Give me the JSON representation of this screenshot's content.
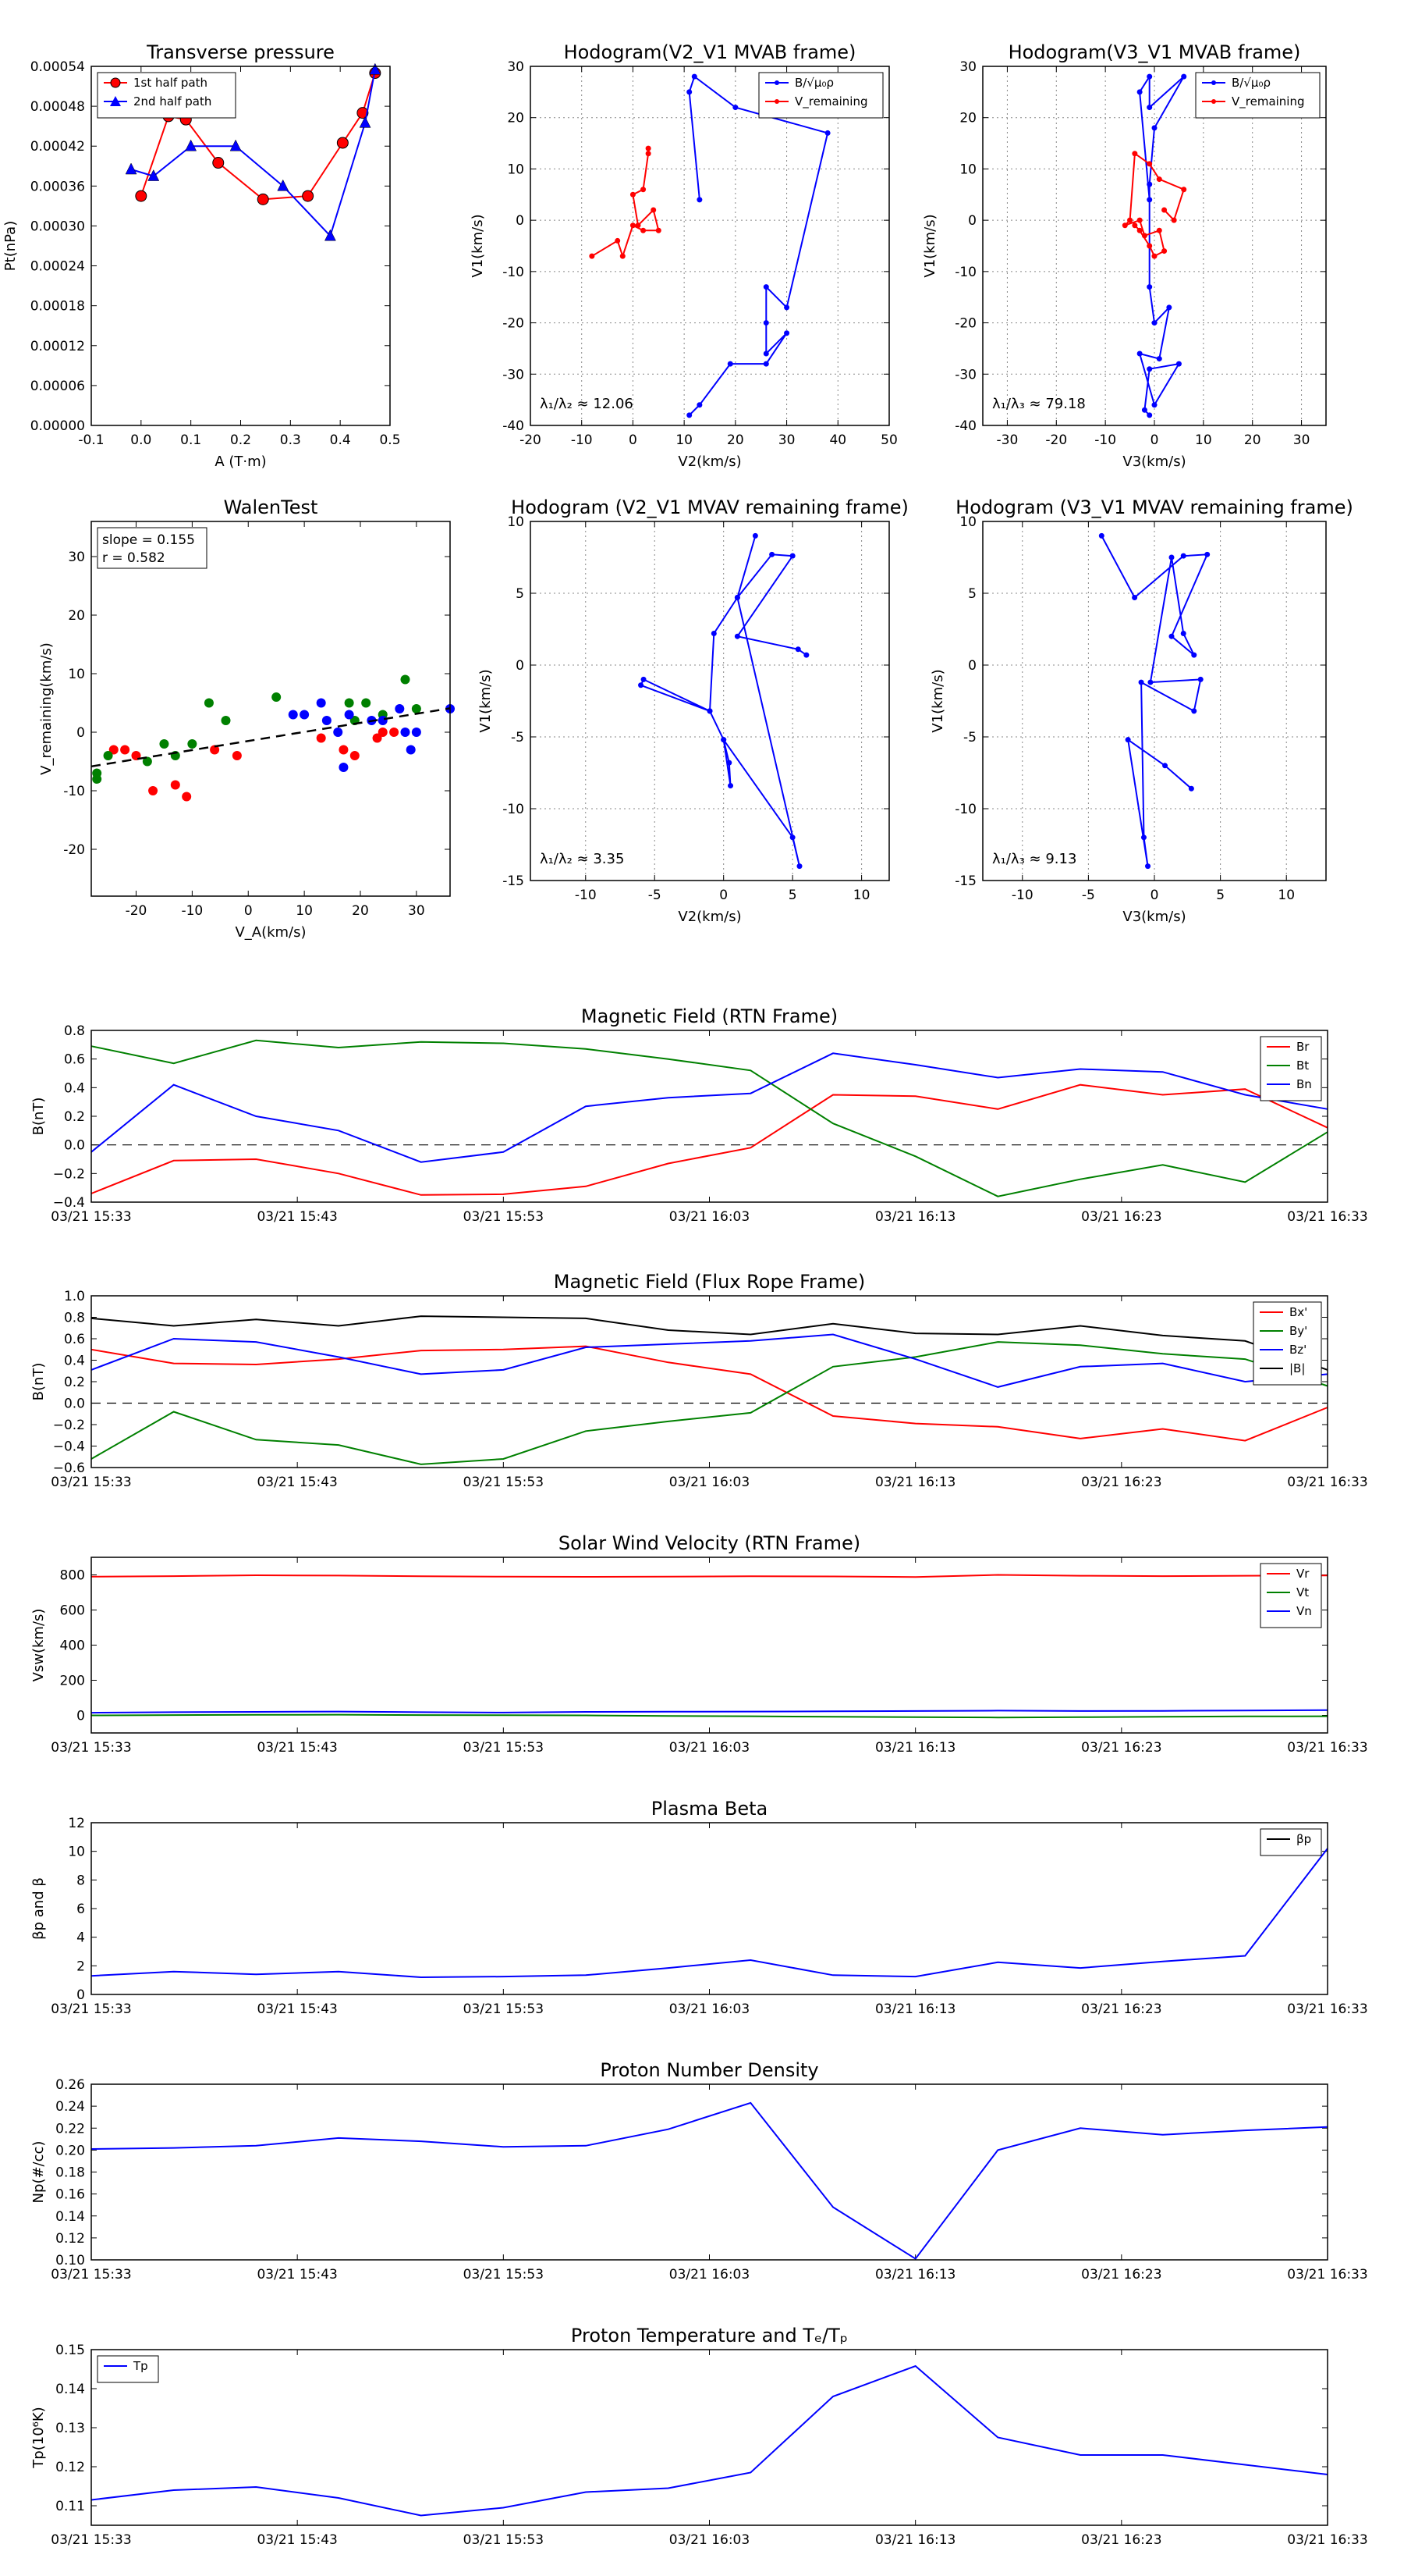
{
  "colors": {
    "red": "#ff0000",
    "green": "#008000",
    "blue": "#0000ff",
    "black": "#000000",
    "darkred": "#cc0000",
    "grid": "#999999"
  },
  "timeticks": [
    "03/21 15:33",
    "03/21 15:43",
    "03/21 15:53",
    "03/21 16:03",
    "03/21 16:13",
    "03/21 16:23",
    "03/21 16:33"
  ],
  "chart_data": [
    {
      "id": "tp",
      "type": "line",
      "title": "Transverse pressure",
      "xlabel": "A (T·m)",
      "ylabel": "Pt(nPa)",
      "xlim": [
        -0.1,
        0.5
      ],
      "ylim": [
        0,
        0.00054
      ],
      "xticks": [
        -0.1,
        0.0,
        0.1,
        0.2,
        0.3,
        0.4,
        0.5
      ],
      "yticks": [
        0.0,
        6e-05,
        0.00012,
        0.00018,
        0.00024,
        0.0003,
        0.00036,
        0.00042,
        0.00048,
        0.00054
      ],
      "ytick_labels": [
        "0.00000",
        "0.00006",
        "0.00012",
        "0.00018",
        "0.00024",
        "0.00030",
        "0.00036",
        "0.00042",
        "0.00048",
        "0.00054"
      ],
      "xtick_labels": [
        "-0.1",
        "0.0",
        "0.1",
        "0.2",
        "0.3",
        "0.4",
        "0.5"
      ],
      "legend": "top-left",
      "series": [
        {
          "name": "1st half path",
          "color": "red",
          "marker": "circle",
          "x": [
            0.0,
            0.055,
            0.09,
            0.155,
            0.245,
            0.335,
            0.405,
            0.445,
            0.47
          ],
          "y": [
            0.000345,
            0.000465,
            0.00046,
            0.000395,
            0.00034,
            0.000345,
            0.000425,
            0.00047,
            0.00053
          ]
        },
        {
          "name": "2nd half path",
          "color": "blue",
          "marker": "triangle",
          "x": [
            -0.02,
            0.025,
            0.1,
            0.19,
            0.285,
            0.38,
            0.45,
            0.47
          ],
          "y": [
            0.000385,
            0.000375,
            0.00042,
            0.00042,
            0.00036,
            0.000285,
            0.000455,
            0.000535
          ]
        }
      ]
    },
    {
      "id": "h1",
      "type": "line",
      "title": "Hodogram(V2_V1 MVAB frame)",
      "xlabel": "V2(km/s)",
      "ylabel": "V1(km/s)",
      "xlim": [
        -20,
        50
      ],
      "ylim": [
        -40,
        30
      ],
      "xticks": [
        -20,
        -10,
        0,
        10,
        20,
        30,
        40,
        50
      ],
      "yticks": [
        -40,
        -30,
        -20,
        -10,
        0,
        10,
        20,
        30
      ],
      "legend": "top-right",
      "annotation": "λ₁/λ₂ ≈ 12.06",
      "grid": true,
      "series": [
        {
          "name": "B/√μ₀ρ",
          "color": "blue",
          "marker": "dot",
          "x": [
            13,
            11,
            12,
            20,
            38,
            30,
            26,
            26,
            26,
            30,
            26,
            19,
            13,
            11
          ],
          "y": [
            4,
            25,
            28,
            22,
            17,
            -17,
            -13,
            -20,
            -26,
            -22,
            -28,
            -28,
            -36,
            -38
          ]
        },
        {
          "name": "V_remaining",
          "color": "red",
          "marker": "dot",
          "x": [
            -8,
            -3,
            -2,
            0,
            2,
            5,
            4,
            1,
            0,
            2,
            3,
            3
          ],
          "y": [
            -7,
            -4,
            -7,
            -1,
            -2,
            -2,
            2,
            -1,
            5,
            6,
            13,
            14
          ]
        }
      ]
    },
    {
      "id": "h2",
      "type": "line",
      "title": "Hodogram(V3_V1 MVAB frame)",
      "xlabel": "V3(km/s)",
      "ylabel": "V1(km/s)",
      "xlim": [
        -35,
        35
      ],
      "ylim": [
        -40,
        30
      ],
      "xticks": [
        -30,
        -20,
        -10,
        0,
        10,
        20,
        30
      ],
      "yticks": [
        -40,
        -30,
        -20,
        -10,
        0,
        10,
        20,
        30
      ],
      "legend": "top-right",
      "annotation": "λ₁/λ₃ ≈ 79.18",
      "grid": true,
      "series": [
        {
          "name": "B/√μ₀ρ",
          "color": "blue",
          "marker": "dot",
          "x": [
            -1,
            -3,
            -1,
            -1,
            6,
            0,
            -1,
            -1,
            0,
            3,
            1,
            -3,
            0,
            5,
            -1,
            -2,
            -1
          ],
          "y": [
            4,
            25,
            28,
            22,
            28,
            18,
            7,
            -13,
            -20,
            -17,
            -27,
            -26,
            -36,
            -28,
            -29,
            -37,
            -38
          ]
        },
        {
          "name": "V_remaining",
          "color": "red",
          "marker": "dot",
          "x": [
            -4,
            -3,
            -1,
            0,
            2,
            1,
            -2,
            -3,
            -6,
            -5,
            -4,
            -1,
            1,
            6,
            4,
            2
          ],
          "y": [
            -1,
            -2,
            -5,
            -7,
            -6,
            -2,
            -3,
            0,
            -1,
            0,
            13,
            11,
            8,
            6,
            0,
            2
          ]
        }
      ]
    },
    {
      "id": "walen",
      "type": "scatter",
      "title": "WalenTest",
      "xlabel": "V_A(km/s)",
      "ylabel": "V_remaining(km/s)",
      "xlim": [
        -28,
        36
      ],
      "ylim": [
        -28,
        36
      ],
      "xticks": [
        -20,
        -10,
        0,
        10,
        20,
        30
      ],
      "yticks": [
        -20,
        -10,
        0,
        10,
        20,
        30
      ],
      "annotation": [
        "slope = 0.155",
        "r = 0.582"
      ],
      "fit": {
        "slope": 0.155,
        "intercept": -1.5
      },
      "series": [
        {
          "color": "red",
          "x": [
            -24,
            -22,
            -20,
            -17,
            -13,
            -11,
            -6,
            -2,
            13,
            17,
            19,
            23,
            26,
            24
          ],
          "y": [
            -3,
            -3,
            -4,
            -10,
            -9,
            -11,
            -3,
            -4,
            -1,
            -3,
            -4,
            -1,
            0,
            0
          ]
        },
        {
          "color": "green",
          "x": [
            -27,
            -27,
            -25,
            -18,
            -15,
            -10,
            -13,
            -7,
            -4,
            5,
            18,
            19,
            21,
            24,
            28,
            30
          ],
          "y": [
            -8,
            -7,
            -4,
            -5,
            -2,
            -2,
            -4,
            5,
            2,
            6,
            5,
            2,
            5,
            3,
            9,
            4
          ]
        },
        {
          "color": "blue",
          "x": [
            8,
            10,
            13,
            14,
            16,
            17,
            18,
            22,
            24,
            27,
            28,
            29,
            30,
            36
          ],
          "y": [
            3,
            3,
            5,
            2,
            0,
            -6,
            3,
            2,
            2,
            4,
            0,
            -3,
            0,
            4
          ]
        }
      ]
    },
    {
      "id": "h3",
      "type": "line",
      "title": "Hodogram (V2_V1 MVAV remaining frame)",
      "xlabel": "V2(km/s)",
      "ylabel": "V1(km/s)",
      "xlim": [
        -14,
        12
      ],
      "ylim": [
        -15,
        10
      ],
      "xticks": [
        -10,
        -5,
        0,
        5,
        10
      ],
      "yticks": [
        -15,
        -10,
        -5,
        0,
        5,
        10
      ],
      "annotation": "λ₁/λ₂ ≈ 3.35",
      "grid": true,
      "series": [
        {
          "color": "blue",
          "marker": "dot",
          "x": [
            2,
            1,
            0,
            0,
            -1,
            -6,
            -6,
            -1,
            0,
            2,
            0,
            1,
            4,
            5,
            1,
            2,
            5,
            5,
            6,
            5,
            4,
            5
          ],
          "y": [
            9,
            5,
            2,
            -3,
            -1,
            -1,
            -1,
            -3,
            -5,
            -8,
            -10,
            -12,
            -14,
            -12,
            2,
            4,
            7,
            1,
            -14,
            -12,
            8,
            7
          ],
          "order": [
            [
              4,
              9
            ],
            [
              1,
              4.7
            ],
            [
              -0.5,
              2.2
            ],
            [
              -1,
              -3.2
            ],
            [
              -6,
              -1.4
            ],
            [
              -5.8,
              -1
            ],
            [
              0,
              -5.2
            ],
            [
              0.5,
              -8.4
            ],
            [
              5,
              -12
            ],
            [
              5.5,
              -14
            ]
          ]
        }
      ]
    },
    {
      "id": "h4",
      "type": "line",
      "title": "Hodogram (V3_V1 MVAV remaining frame)",
      "xlabel": "V3(km/s)",
      "ylabel": "V1(km/s)",
      "xlim": [
        -13,
        13
      ],
      "ylim": [
        -15,
        10
      ],
      "xticks": [
        -10,
        -5,
        0,
        5,
        10
      ],
      "yticks": [
        -15,
        -10,
        -5,
        0,
        5,
        10
      ],
      "annotation": "λ₁/λ₃ ≈ 9.13",
      "grid": true,
      "series": [
        {
          "color": "blue",
          "marker": "dot"
        }
      ]
    },
    {
      "id": "bfield",
      "type": "line",
      "title": "Magnetic Field (RTN Frame)",
      "ylabel": "B(nT)",
      "ylim": [
        -0.4,
        0.8
      ],
      "yticks": [
        -0.4,
        -0.2,
        0.0,
        0.2,
        0.4,
        0.6,
        0.8
      ],
      "ytick_labels": [
        "−0.4",
        "−0.2",
        "0.0",
        "0.2",
        "0.4",
        "0.6",
        "0.8"
      ],
      "legend": "top-right",
      "zero_line": true,
      "series": [
        {
          "name": "Br",
          "color": "red",
          "y": [
            -0.34,
            -0.11,
            -0.1,
            -0.2,
            -0.35,
            -0.345,
            -0.29,
            -0.13,
            -0.02,
            0.35,
            0.34,
            0.25,
            0.42,
            0.35,
            0.39,
            0.12
          ]
        },
        {
          "name": "Bt",
          "color": "green",
          "y": [
            0.69,
            0.57,
            0.73,
            0.68,
            0.72,
            0.71,
            0.67,
            0.6,
            0.52,
            0.15,
            -0.08,
            -0.36,
            -0.24,
            -0.14,
            -0.26,
            0.09
          ]
        },
        {
          "name": "Bn",
          "color": "blue",
          "y": [
            -0.05,
            0.42,
            0.2,
            0.1,
            -0.12,
            -0.05,
            0.27,
            0.33,
            0.36,
            0.64,
            0.56,
            0.47,
            0.53,
            0.51,
            0.35,
            0.25
          ]
        }
      ]
    },
    {
      "id": "frope",
      "type": "line",
      "title": "Magnetic Field (Flux Rope Frame)",
      "ylabel": "B(nT)",
      "ylim": [
        -0.6,
        1.0
      ],
      "yticks": [
        -0.6,
        -0.4,
        -0.2,
        0.0,
        0.2,
        0.4,
        0.6,
        0.8,
        1.0
      ],
      "ytick_labels": [
        "−0.6",
        "−0.4",
        "−0.2",
        "0.0",
        "0.2",
        "0.4",
        "0.6",
        "0.8",
        "1.0"
      ],
      "legend": "top-right",
      "zero_line": true,
      "series": [
        {
          "name": "Bx'",
          "color": "red",
          "y": [
            0.5,
            0.37,
            0.36,
            0.41,
            0.49,
            0.5,
            0.53,
            0.38,
            0.27,
            -0.12,
            -0.19,
            -0.22,
            -0.33,
            -0.24,
            -0.35,
            -0.04
          ]
        },
        {
          "name": "By'",
          "color": "green",
          "y": [
            -0.52,
            -0.08,
            -0.34,
            -0.39,
            -0.57,
            -0.52,
            -0.26,
            -0.17,
            -0.09,
            0.34,
            0.43,
            0.57,
            0.54,
            0.46,
            0.41,
            0.16
          ]
        },
        {
          "name": "Bz'",
          "color": "blue",
          "y": [
            0.31,
            0.6,
            0.57,
            0.43,
            0.27,
            0.31,
            0.52,
            0.55,
            0.58,
            0.64,
            0.41,
            0.15,
            0.34,
            0.37,
            0.2,
            0.27
          ]
        },
        {
          "name": "|B|",
          "color": "black",
          "y": [
            0.79,
            0.72,
            0.78,
            0.72,
            0.81,
            0.8,
            0.79,
            0.68,
            0.64,
            0.74,
            0.65,
            0.64,
            0.72,
            0.63,
            0.58,
            0.31
          ]
        }
      ]
    },
    {
      "id": "vsw",
      "type": "line",
      "title": "Solar Wind Velocity (RTN Frame)",
      "ylabel": "Vsw(km/s)",
      "ylim": [
        -100,
        900
      ],
      "yticks": [
        0,
        200,
        400,
        600,
        800
      ],
      "ytick_labels": [
        "0",
        "200",
        "400",
        "600",
        "800"
      ],
      "legend": "top-right",
      "series": [
        {
          "name": "Vr",
          "color": "red",
          "y": [
            790,
            793,
            798,
            796,
            792,
            790,
            789,
            790,
            792,
            791,
            788,
            800,
            795,
            793,
            795,
            797
          ]
        },
        {
          "name": "Vt",
          "color": "green",
          "y": [
            0,
            2,
            3,
            4,
            2,
            1,
            0,
            -3,
            -5,
            -8,
            -10,
            -12,
            -10,
            -8,
            -6,
            -5
          ]
        },
        {
          "name": "Vn",
          "color": "blue",
          "y": [
            15,
            18,
            20,
            22,
            18,
            16,
            20,
            21,
            22,
            23,
            25,
            27,
            25,
            26,
            28,
            30
          ]
        }
      ]
    },
    {
      "id": "beta",
      "type": "line",
      "title": "Plasma Beta",
      "ylabel": "βp and β",
      "ylim": [
        0,
        12
      ],
      "yticks": [
        0,
        2,
        4,
        6,
        8,
        10,
        12
      ],
      "ytick_labels": [
        "0",
        "2",
        "4",
        "6",
        "8",
        "10",
        "12"
      ],
      "legend": "top-right",
      "series": [
        {
          "name": "βp",
          "color": "black",
          "linecolor": "blue",
          "y": [
            1.3,
            1.6,
            1.4,
            1.6,
            1.2,
            1.25,
            1.35,
            1.85,
            2.4,
            1.35,
            1.25,
            2.25,
            1.85,
            2.3,
            2.7,
            10.2
          ]
        }
      ]
    },
    {
      "id": "np",
      "type": "line",
      "title": "Proton Number Density",
      "ylabel": "Np(#/cc)",
      "ylim": [
        0.1,
        0.26
      ],
      "yticks": [
        0.1,
        0.12,
        0.14,
        0.16,
        0.18,
        0.2,
        0.22,
        0.24,
        0.26
      ],
      "ytick_labels": [
        "0.10",
        "0.12",
        "0.14",
        "0.16",
        "0.18",
        "0.20",
        "0.22",
        "0.24",
        "0.26"
      ],
      "series": [
        {
          "color": "blue",
          "y": [
            0.201,
            0.202,
            0.204,
            0.211,
            0.208,
            0.203,
            0.204,
            0.219,
            0.243,
            0.148,
            0.101,
            0.2,
            0.22,
            0.214,
            0.218,
            0.221
          ]
        }
      ]
    },
    {
      "id": "tpr",
      "type": "line",
      "title": "Proton Temperature and Tₑ/Tₚ",
      "ylabel": "Tp(10⁶K)",
      "ylim": [
        0.105,
        0.15
      ],
      "yticks": [
        0.11,
        0.12,
        0.13,
        0.14,
        0.15
      ],
      "ytick_labels": [
        "0.11",
        "0.12",
        "0.13",
        "0.14",
        "0.15"
      ],
      "legend": "top-left",
      "series": [
        {
          "name": "Tp",
          "color": "blue",
          "y": [
            0.1115,
            0.114,
            0.1148,
            0.112,
            0.1075,
            0.1095,
            0.1135,
            0.1145,
            0.1185,
            0.138,
            0.1458,
            0.1275,
            0.123,
            0.123,
            0.1205,
            0.118
          ]
        }
      ]
    }
  ]
}
